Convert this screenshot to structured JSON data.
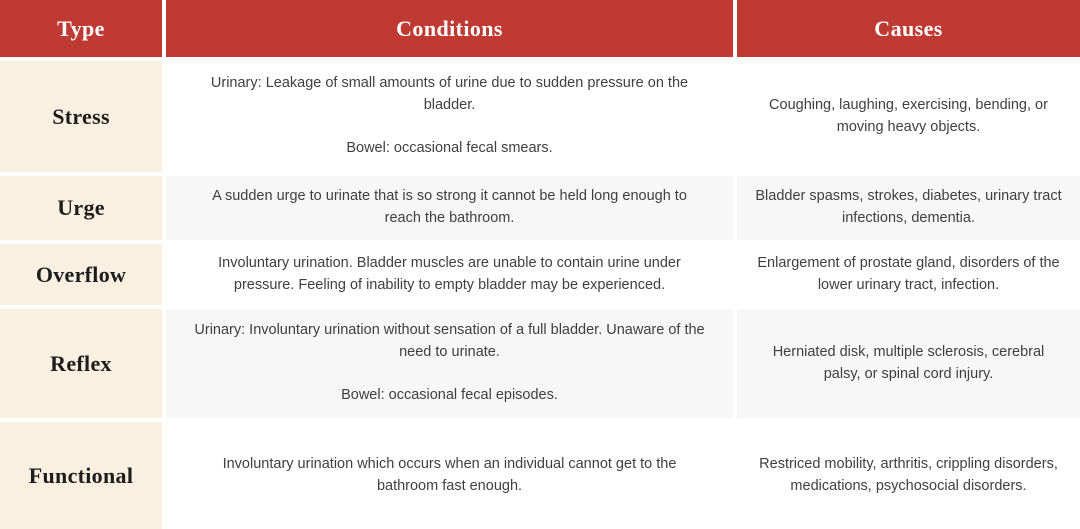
{
  "colors": {
    "header_bg": "#be3a33",
    "header_text": "#ffffff",
    "type_column_bg": "#faf0e1",
    "row_bg": "#ffffff",
    "row_alt_bg": "#f7f7f7",
    "body_text": "#3f3f3f",
    "type_text": "#1d1d1d"
  },
  "table": {
    "headers": [
      "Type",
      "Conditions",
      "Causes"
    ],
    "rows": [
      {
        "type": "Stress",
        "conditions": "Urinary: Leakage of small amounts of urine due to sudden pressure on the bladder.\n\nBowel: occasional fecal smears.",
        "causes": "Coughing, laughing, exercising, bending, or moving heavy objects."
      },
      {
        "type": "Urge",
        "conditions": "A sudden urge to urinate that is so strong it cannot be held long enough to reach the bathroom.",
        "causes": "Bladder spasms, strokes, diabetes, urinary tract infections, dementia."
      },
      {
        "type": "Overflow",
        "conditions": "Involuntary urination. Bladder muscles are unable to contain urine under pressure. Feeling of inability to empty bladder may be experienced.",
        "causes": "Enlargement of prostate gland, disorders of the lower urinary tract, infection."
      },
      {
        "type": "Reflex",
        "conditions": "Urinary: Involuntary urination without sensation of a full bladder. Unaware of the need to urinate.\n\nBowel: occasional fecal episodes.",
        "causes": "Herniated disk, multiple sclerosis, cerebral palsy, or spinal cord injury."
      },
      {
        "type": "Functional",
        "conditions": "Involuntary urination which occurs when an individual cannot get to the bathroom fast enough.",
        "causes": "Restriced mobility, arthritis, crippling disorders, medications, psychosocial disorders."
      }
    ]
  }
}
